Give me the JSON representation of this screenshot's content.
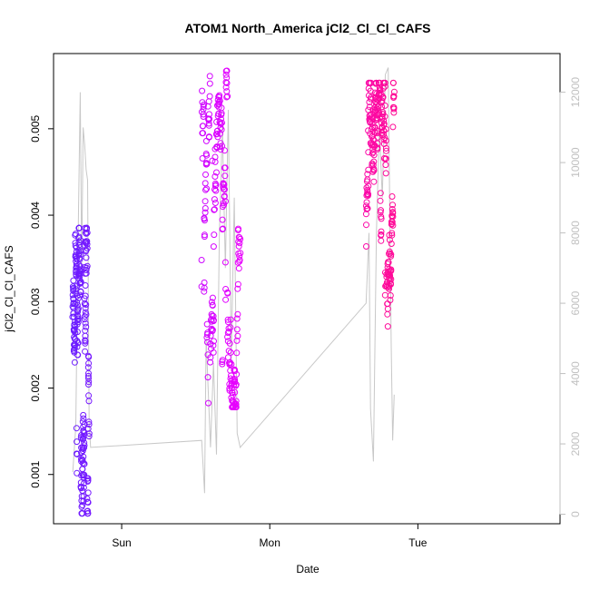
{
  "chart_data": {
    "type": "scatter",
    "title": "ATOM1 North_America jCl2_Cl_Cl_CAFS",
    "xlabel": "Date",
    "ylabel": "jCl2_Cl_Cl_CAFS",
    "x_ticks": [
      "Sun",
      "Mon",
      "Tue"
    ],
    "x_range_days": [
      -0.46,
      2.96
    ],
    "ylim": [
      0.00043,
      0.00587
    ],
    "y_ticks": [
      0.001,
      0.002,
      0.003,
      0.004,
      0.005
    ],
    "y_tick_labels": [
      "0.001",
      "0.002",
      "0.003",
      "0.004",
      "0.005"
    ],
    "y2_lim": [
      -270,
      13100
    ],
    "y2_ticks": [
      0,
      2000,
      4000,
      6000,
      8000,
      10000,
      12000
    ],
    "y2_tick_labels": [
      "0",
      "2000",
      "4000",
      "6000",
      "8000",
      "10000",
      "12000"
    ],
    "grid": false,
    "colors": {
      "series_start": "#6a1cff",
      "series_mid": "#e600ff",
      "series_end": "#ff0a96",
      "secondary_line": "#c8c8c8",
      "axis": "#000000",
      "right_axis": "#c0c0c0"
    },
    "series": [
      {
        "marker": "open-circle",
        "segments": [
          {
            "x_start": -0.33,
            "x_end": -0.22,
            "y_min": 0.00055,
            "y_max": 0.00385,
            "y_typical": 0.0026
          },
          {
            "x_start": 0.54,
            "x_end": 0.8,
            "y_min": 0.00178,
            "y_max": 0.00567,
            "y_typical": 0.0036
          },
          {
            "x_start": 1.65,
            "x_end": 1.84,
            "y_min": 0.00228,
            "y_max": 0.00553,
            "y_typical": 0.0037
          }
        ]
      },
      {
        "axis": "right",
        "style": "line",
        "points": [
          [
            -0.33,
            1200
          ],
          [
            -0.31,
            2500
          ],
          [
            -0.3,
            6000
          ],
          [
            -0.29,
            9000
          ],
          [
            -0.28,
            12000
          ],
          [
            -0.27,
            7000
          ],
          [
            -0.26,
            11000
          ],
          [
            -0.25,
            10500
          ],
          [
            -0.24,
            9800
          ],
          [
            -0.23,
            9500
          ],
          [
            -0.22,
            2600
          ],
          [
            -0.21,
            1900
          ],
          [
            0.54,
            2100
          ],
          [
            0.56,
            600
          ],
          [
            0.57,
            5000
          ],
          [
            0.6,
            1900
          ],
          [
            0.62,
            4300
          ],
          [
            0.64,
            1700
          ],
          [
            0.66,
            8000
          ],
          [
            0.68,
            11000
          ],
          [
            0.7,
            7000
          ],
          [
            0.72,
            11500
          ],
          [
            0.74,
            4400
          ],
          [
            0.76,
            9000
          ],
          [
            0.78,
            2300
          ],
          [
            0.8,
            1900
          ],
          [
            1.65,
            6000
          ],
          [
            1.67,
            8000
          ],
          [
            1.68,
            3000
          ],
          [
            1.7,
            1500
          ],
          [
            1.72,
            8000
          ],
          [
            1.74,
            11000
          ],
          [
            1.76,
            9000
          ],
          [
            1.78,
            12500
          ],
          [
            1.8,
            12700
          ],
          [
            1.82,
            4800
          ],
          [
            1.83,
            2100
          ],
          [
            1.84,
            3400
          ]
        ]
      }
    ]
  }
}
